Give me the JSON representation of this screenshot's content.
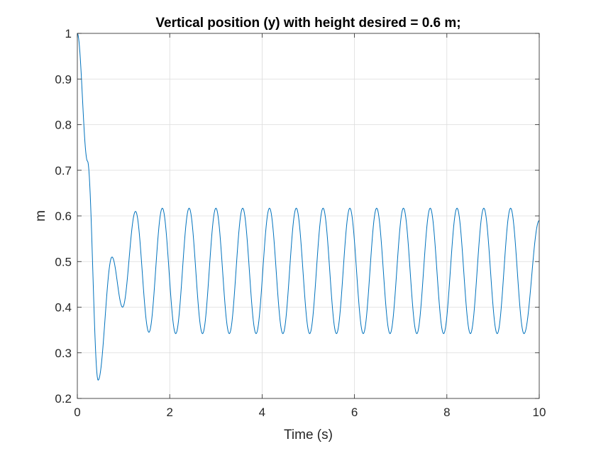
{
  "chart_data": {
    "type": "line",
    "title": "Vertical position (y) with height desired = 0.6 m;",
    "xlabel": "Time (s)",
    "ylabel": "m",
    "xlim": [
      0,
      10
    ],
    "ylim": [
      0.2,
      1
    ],
    "xticks": [
      0,
      2,
      4,
      6,
      8,
      10
    ],
    "xtick_labels": [
      "0",
      "2",
      "4",
      "6",
      "8",
      "10"
    ],
    "yticks": [
      0.2,
      0.3,
      0.4,
      0.5,
      0.6,
      0.7,
      0.8,
      0.9,
      1
    ],
    "ytick_labels": [
      "0.2",
      "0.3",
      "0.4",
      "0.5",
      "0.6",
      "0.7",
      "0.8",
      "0.9",
      "1"
    ],
    "grid": true,
    "legend": false,
    "series": [
      {
        "color": "#0072bd",
        "x": [
          0,
          0.22,
          0.45,
          0.75,
          0.98,
          1.26,
          1.55,
          1.84,
          2.13,
          2.42,
          2.71,
          3.0,
          3.29,
          3.58,
          3.87,
          4.16,
          4.45,
          4.74,
          5.03,
          5.32,
          5.61,
          5.9,
          6.19,
          6.48,
          6.77,
          7.06,
          7.35,
          7.64,
          7.93,
          8.22,
          8.51,
          8.8,
          9.09,
          9.38,
          9.67,
          10.0
        ],
        "y": [
          1.0,
          0.72,
          0.24,
          0.51,
          0.4,
          0.61,
          0.345,
          0.617,
          0.342,
          0.617,
          0.342,
          0.617,
          0.342,
          0.617,
          0.342,
          0.617,
          0.342,
          0.617,
          0.342,
          0.617,
          0.342,
          0.617,
          0.342,
          0.617,
          0.342,
          0.617,
          0.342,
          0.617,
          0.342,
          0.617,
          0.342,
          0.617,
          0.342,
          0.617,
          0.342,
          0.59
        ]
      }
    ]
  }
}
